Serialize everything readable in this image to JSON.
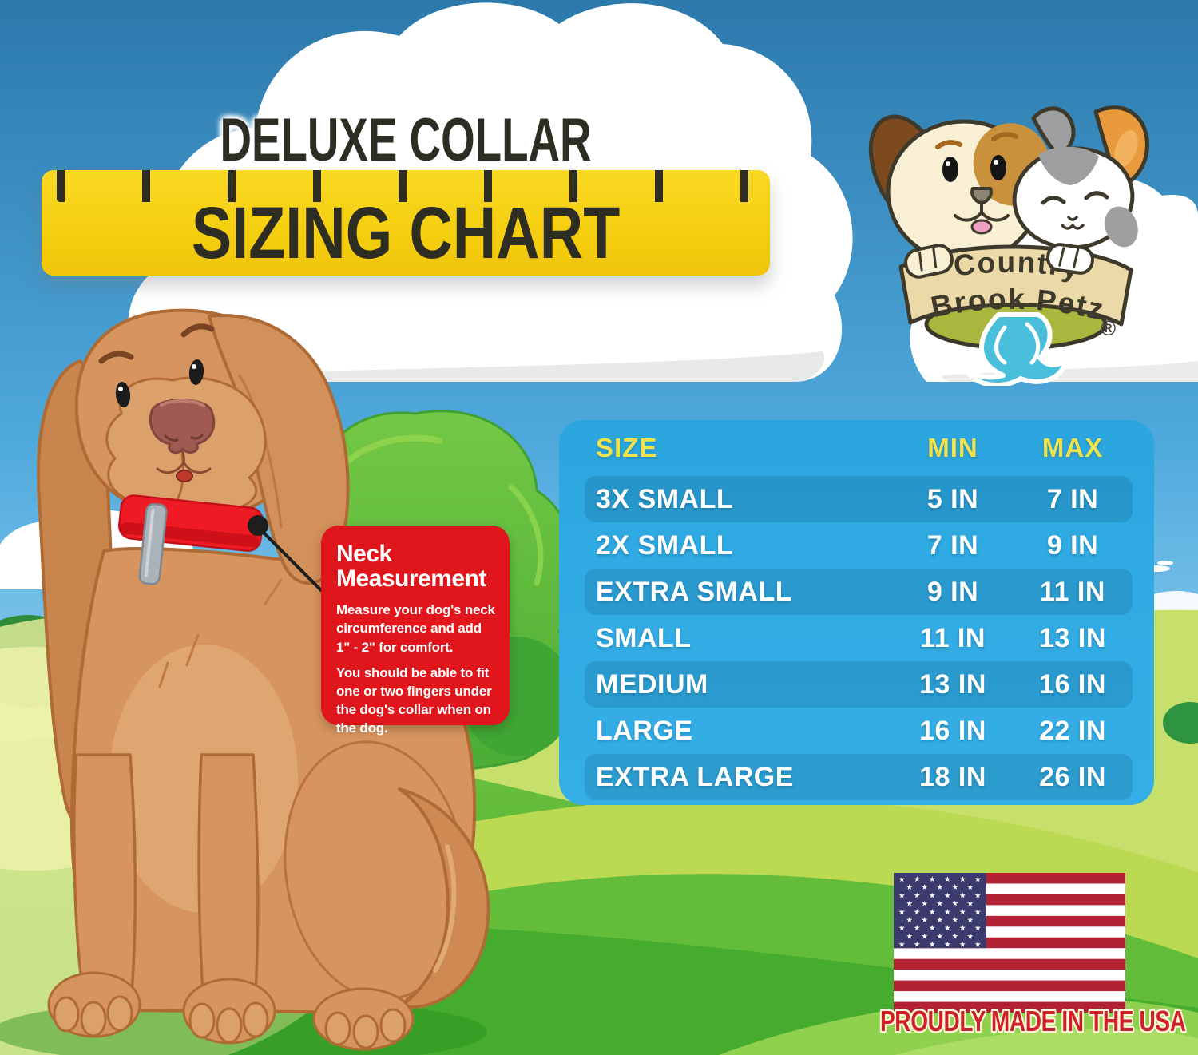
{
  "colors": {
    "ink": "#2E2D23",
    "ruler_yellow": "#F4CC0D",
    "table_blue": "#31ABE3",
    "table_header_yellow": "#EFE24C",
    "table_stripe": "rgba(4,62,96,0.16)",
    "callout_red": "#E1161C",
    "collar_red": "#EE1B24",
    "footer_red": "#CE2127",
    "flag_red": "#B22234",
    "flag_blue": "#3C3B6E",
    "sky_blue": "#57AFE1",
    "grass_green": "#55B833"
  },
  "header": {
    "title_top": "DELUXE COLLAR",
    "title_main": "SIZING CHART"
  },
  "logo": {
    "brand_top": "Country",
    "brand_bottom": "Brook Petz",
    "registered_mark": "®"
  },
  "measurement_callout": {
    "heading": "Neck Measurement",
    "body_1": "Measure your dog's neck circumference and add 1\" - 2\" for comfort.",
    "body_2": "You should be able to fit one or two fingers under the dog's collar when on the dog."
  },
  "chart_data": {
    "type": "table",
    "title": "DELUXE COLLAR SIZING CHART",
    "columns": [
      "SIZE",
      "MIN",
      "MAX"
    ],
    "units": "inches",
    "rows": [
      [
        "3X SMALL",
        "5 IN",
        "7 IN"
      ],
      [
        "2X SMALL",
        "7 IN",
        "9 IN"
      ],
      [
        "EXTRA SMALL",
        "9 IN",
        "11 IN"
      ],
      [
        "SMALL",
        "11 IN",
        "13 IN"
      ],
      [
        "MEDIUM",
        "13 IN",
        "16 IN"
      ],
      [
        "LARGE",
        "16 IN",
        "22 IN"
      ],
      [
        "EXTRA LARGE",
        "18 IN",
        "26 IN"
      ]
    ]
  },
  "footer": {
    "made_in_text": "PROUDLY MADE IN THE USA"
  }
}
